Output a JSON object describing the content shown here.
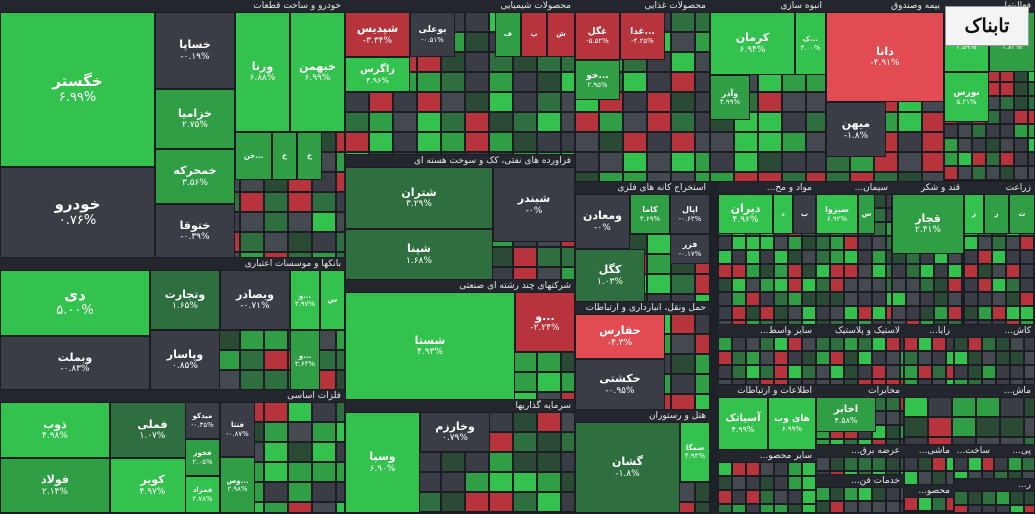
{
  "colors": {
    "up_strong": "#33c24d",
    "up": "#2f9e44",
    "up_dim": "#2f6e3f",
    "flat": "#3a3d45",
    "down": "#b8343c",
    "down_strong": "#e24b52"
  },
  "logo_text": "تابناک",
  "sectors": [
    {
      "id": "auto",
      "title": "خودرو و ساخت قطعات",
      "tiles": [
        {
          "n": "خگستر",
          "v": "۶.۹۹%",
          "c": "up_strong",
          "big": true
        },
        {
          "n": "خودرو",
          "v": "۰.۷۶%",
          "c": "flat",
          "big": true
        },
        {
          "n": "خساپا",
          "v": "-۰.۱۹%",
          "c": "flat"
        },
        {
          "n": "ورنا",
          "v": "۶.۸۸%",
          "c": "up_strong"
        },
        {
          "n": "خبهمن",
          "v": "۶.۹۹%",
          "c": "up_strong"
        },
        {
          "n": "خزامیا",
          "v": "۲.۷۵%",
          "c": "up"
        },
        {
          "n": "خمحرکه",
          "v": "۳.۵۶%",
          "c": "up"
        },
        {
          "n": "ختوقا",
          "v": "-۰.۳۹%",
          "c": "flat"
        },
        {
          "n": "خن...",
          "v": "",
          "c": "up"
        },
        {
          "n": "خ",
          "v": "",
          "c": "up"
        },
        {
          "n": "خ",
          "v": "",
          "c": "up"
        }
      ]
    },
    {
      "id": "banks",
      "title": "بانکها و موسسات اعتباری",
      "tiles": [
        {
          "n": "دی",
          "v": "۵.۰۰%",
          "c": "up_strong",
          "big": true
        },
        {
          "n": "وبملت",
          "v": "-۰.۸۳%",
          "c": "flat"
        },
        {
          "n": "وتجارت",
          "v": "۱.۶۵%",
          "c": "up_dim"
        },
        {
          "n": "وبصادر",
          "v": "-۰.۷۱%",
          "c": "flat"
        },
        {
          "n": "و...",
          "v": "۴.۹۷%",
          "c": "up_strong"
        },
        {
          "n": "س",
          "v": "",
          "c": "up_strong"
        },
        {
          "n": "وپاسار",
          "v": "۰.۸۵%",
          "c": "flat"
        },
        {
          "n": "و...",
          "v": "۳.۶۴%",
          "c": "up"
        }
      ]
    },
    {
      "id": "metals",
      "title": "فلزات اساسی",
      "tiles": [
        {
          "n": "ذوب",
          "v": "۴.۹۸%",
          "c": "up_strong"
        },
        {
          "n": "فولاد",
          "v": "۲.۱۴%",
          "c": "up"
        },
        {
          "n": "فملی",
          "v": "۱.۰۷%",
          "c": "up_dim"
        },
        {
          "n": "کویر",
          "v": "۴.۹۷%",
          "c": "up_strong"
        },
        {
          "n": "میدکو",
          "v": "-۰.۳۵%",
          "c": "flat"
        },
        {
          "n": "فخوز",
          "v": "۲.۰۵%",
          "c": "up"
        },
        {
          "n": "فمراد",
          "v": "۴.۷۸%",
          "c": "up_strong"
        },
        {
          "n": "فنتا",
          "v": "-۰.۸۷%",
          "c": "flat"
        },
        {
          "n": "وس...",
          "v": "۲.۹۸%",
          "c": "up"
        }
      ]
    },
    {
      "id": "chem",
      "title": "محصولات شیمیایی",
      "tiles": [
        {
          "n": "شپدیس",
          "v": "-۳.۳۴%",
          "c": "down"
        },
        {
          "n": "بوعلی",
          "v": "-۰.۵۱%",
          "c": "flat"
        },
        {
          "n": "زاگرس",
          "v": "۴.۹۶%",
          "c": "up_strong"
        },
        {
          "n": "ف",
          "v": "",
          "c": "up"
        },
        {
          "n": "پ",
          "v": "",
          "c": "down"
        },
        {
          "n": "ش",
          "v": "",
          "c": "down"
        }
      ]
    },
    {
      "id": "oil",
      "title": "فراورده های نفتی، کک و سوخت هسته ای",
      "tiles": [
        {
          "n": "شتران",
          "v": "۳.۲۹%",
          "c": "up_dim"
        },
        {
          "n": "شبندر",
          "v": "-۰%",
          "c": "flat"
        },
        {
          "n": "شپنا",
          "v": "۱.۶۸%",
          "c": "up_dim"
        }
      ]
    },
    {
      "id": "multi",
      "title": "شرکتهای چند رشته ای صنعتی",
      "tiles": [
        {
          "n": "شستا",
          "v": "۴.۹۳%",
          "c": "up_strong"
        },
        {
          "n": "و...",
          "v": "-۲.۲۴%",
          "c": "down"
        }
      ]
    },
    {
      "id": "invest",
      "title": "سرمایه گذاریها",
      "tiles": [
        {
          "n": "وسپا",
          "v": "۶.۹۰%",
          "c": "up_strong"
        },
        {
          "n": "وخارزم",
          "v": "۰.۷۹%",
          "c": "flat"
        }
      ]
    },
    {
      "id": "food",
      "title": "محصولات غذایی",
      "tiles": [
        {
          "n": "غگل",
          "v": "-۵.۵۲%",
          "c": "down"
        },
        {
          "n": "غدا...",
          "v": "-۴.۲۵%",
          "c": "down"
        },
        {
          "n": "خو...",
          "v": "۲.۹۵%",
          "c": "up"
        }
      ]
    },
    {
      "id": "nonmetal",
      "title": "استخراج کانه های فلزی",
      "tiles": [
        {
          "n": "ومعادن",
          "v": "-۰%",
          "c": "flat"
        },
        {
          "n": "کاما",
          "v": "۳.۶۹%",
          "c": "up"
        },
        {
          "n": "اپال",
          "v": "-۰.۶۳%",
          "c": "flat"
        },
        {
          "n": "فزر",
          "v": "-۰.۱۷%",
          "c": "flat"
        },
        {
          "n": "کگل",
          "v": "۱.۰۳%",
          "c": "up_dim"
        }
      ]
    },
    {
      "id": "transport",
      "title": "حمل ونقل، انبارداری و ارتباطات",
      "tiles": [
        {
          "n": "حفارس",
          "v": "-۴.۳%",
          "c": "down_strong"
        },
        {
          "n": "حکشتی",
          "v": "-۰.۹۵%",
          "c": "flat"
        }
      ]
    },
    {
      "id": "hotel",
      "title": "هتل و رستوران",
      "tiles": [
        {
          "n": "گشان",
          "v": "-۱.۸%",
          "c": "up_dim"
        },
        {
          "n": "سمگا",
          "v": "۴.۹۴%",
          "c": "up_strong"
        }
      ]
    },
    {
      "id": "mass",
      "title": "انبوه سازی",
      "tiles": [
        {
          "n": "کرمان",
          "v": "۶.۹۴%",
          "c": "up_strong"
        },
        {
          "n": "ک...",
          "v": "۳.۰۰%",
          "c": "up_strong"
        },
        {
          "n": "وآذر",
          "v": "۴.۹۹%",
          "c": "up"
        }
      ]
    },
    {
      "id": "insurance",
      "title": "بیمه وصندوق",
      "tiles": [
        {
          "n": "دانا",
          "v": "-۴.۹۱%",
          "c": "down_strong"
        },
        {
          "n": "میهن",
          "v": "-۱.۸%",
          "c": "flat"
        }
      ]
    },
    {
      "id": "misc1",
      "title": "فعالیتها",
      "tiles": [
        {
          "n": "کالا",
          "v": "۴.۵۹%",
          "c": "up_strong"
        },
        {
          "n": "فر...",
          "v": "۱.۸۲%",
          "c": "up"
        },
        {
          "n": "بورس",
          "v": "۵.۲۱%",
          "c": "up_strong"
        }
      ]
    },
    {
      "id": "drugs",
      "title": "مواد و مح...",
      "tiles": [
        {
          "n": "دیران",
          "v": "۴.۹۶%",
          "c": "up_strong"
        },
        {
          "n": "د",
          "v": "",
          "c": "up_strong"
        },
        {
          "n": "ب",
          "v": "",
          "c": "flat"
        }
      ]
    },
    {
      "id": "cement",
      "title": "سیمان...",
      "tiles": [
        {
          "n": "سبزوا",
          "v": "۶.۹۲%",
          "c": "up_strong"
        },
        {
          "n": "س",
          "v": "",
          "c": "up"
        }
      ]
    },
    {
      "id": "sugar",
      "title": "قند و شکر",
      "tiles": [
        {
          "n": "قجار",
          "v": "۲.۴۱%",
          "c": "up"
        }
      ]
    },
    {
      "id": "agri",
      "title": "زراعت",
      "tiles": [
        {
          "n": "ز",
          "v": "",
          "c": "up_strong"
        },
        {
          "n": "ز",
          "v": "",
          "c": "up"
        },
        {
          "n": "ث",
          "v": "",
          "c": "up"
        }
      ]
    },
    {
      "id": "rubber",
      "title": "لاستیک و پلاستیک",
      "tiles": []
    },
    {
      "id": "misc_other",
      "title": "سایر واسط...",
      "tiles": []
    },
    {
      "id": "rayane",
      "title": "رایا...",
      "tiles": []
    },
    {
      "id": "kashi",
      "title": "کاش...",
      "tiles": []
    },
    {
      "id": "mash",
      "title": "ماش...",
      "tiles": []
    },
    {
      "id": "tele",
      "title": "اطلاعات و ارتباطات",
      "tiles": [
        {
          "n": "آسیاتک",
          "v": "۴.۹۹%",
          "c": "up_strong"
        },
        {
          "n": "های وب",
          "v": "۶.۹۹%",
          "c": "up_strong"
        }
      ]
    },
    {
      "id": "mokhaberat",
      "title": "مخابرات",
      "tiles": [
        {
          "n": "اخابر",
          "v": "۴.۵۸%",
          "c": "up"
        }
      ]
    },
    {
      "id": "arze",
      "title": "عرضه برق...",
      "tiles": []
    },
    {
      "id": "other_prod",
      "title": "سایر محصو...",
      "tiles": []
    },
    {
      "id": "services",
      "title": "خدمات فن...",
      "tiles": []
    },
    {
      "id": "mashini",
      "title": "ماشی...",
      "tiles": []
    },
    {
      "id": "sakht",
      "title": "ساخت...",
      "tiles": []
    },
    {
      "id": "mahsu",
      "title": "محصو...",
      "tiles": []
    },
    {
      "id": "pi",
      "title": "پی...",
      "tiles": []
    },
    {
      "id": "ra",
      "title": "ر...",
      "tiles": []
    }
  ]
}
